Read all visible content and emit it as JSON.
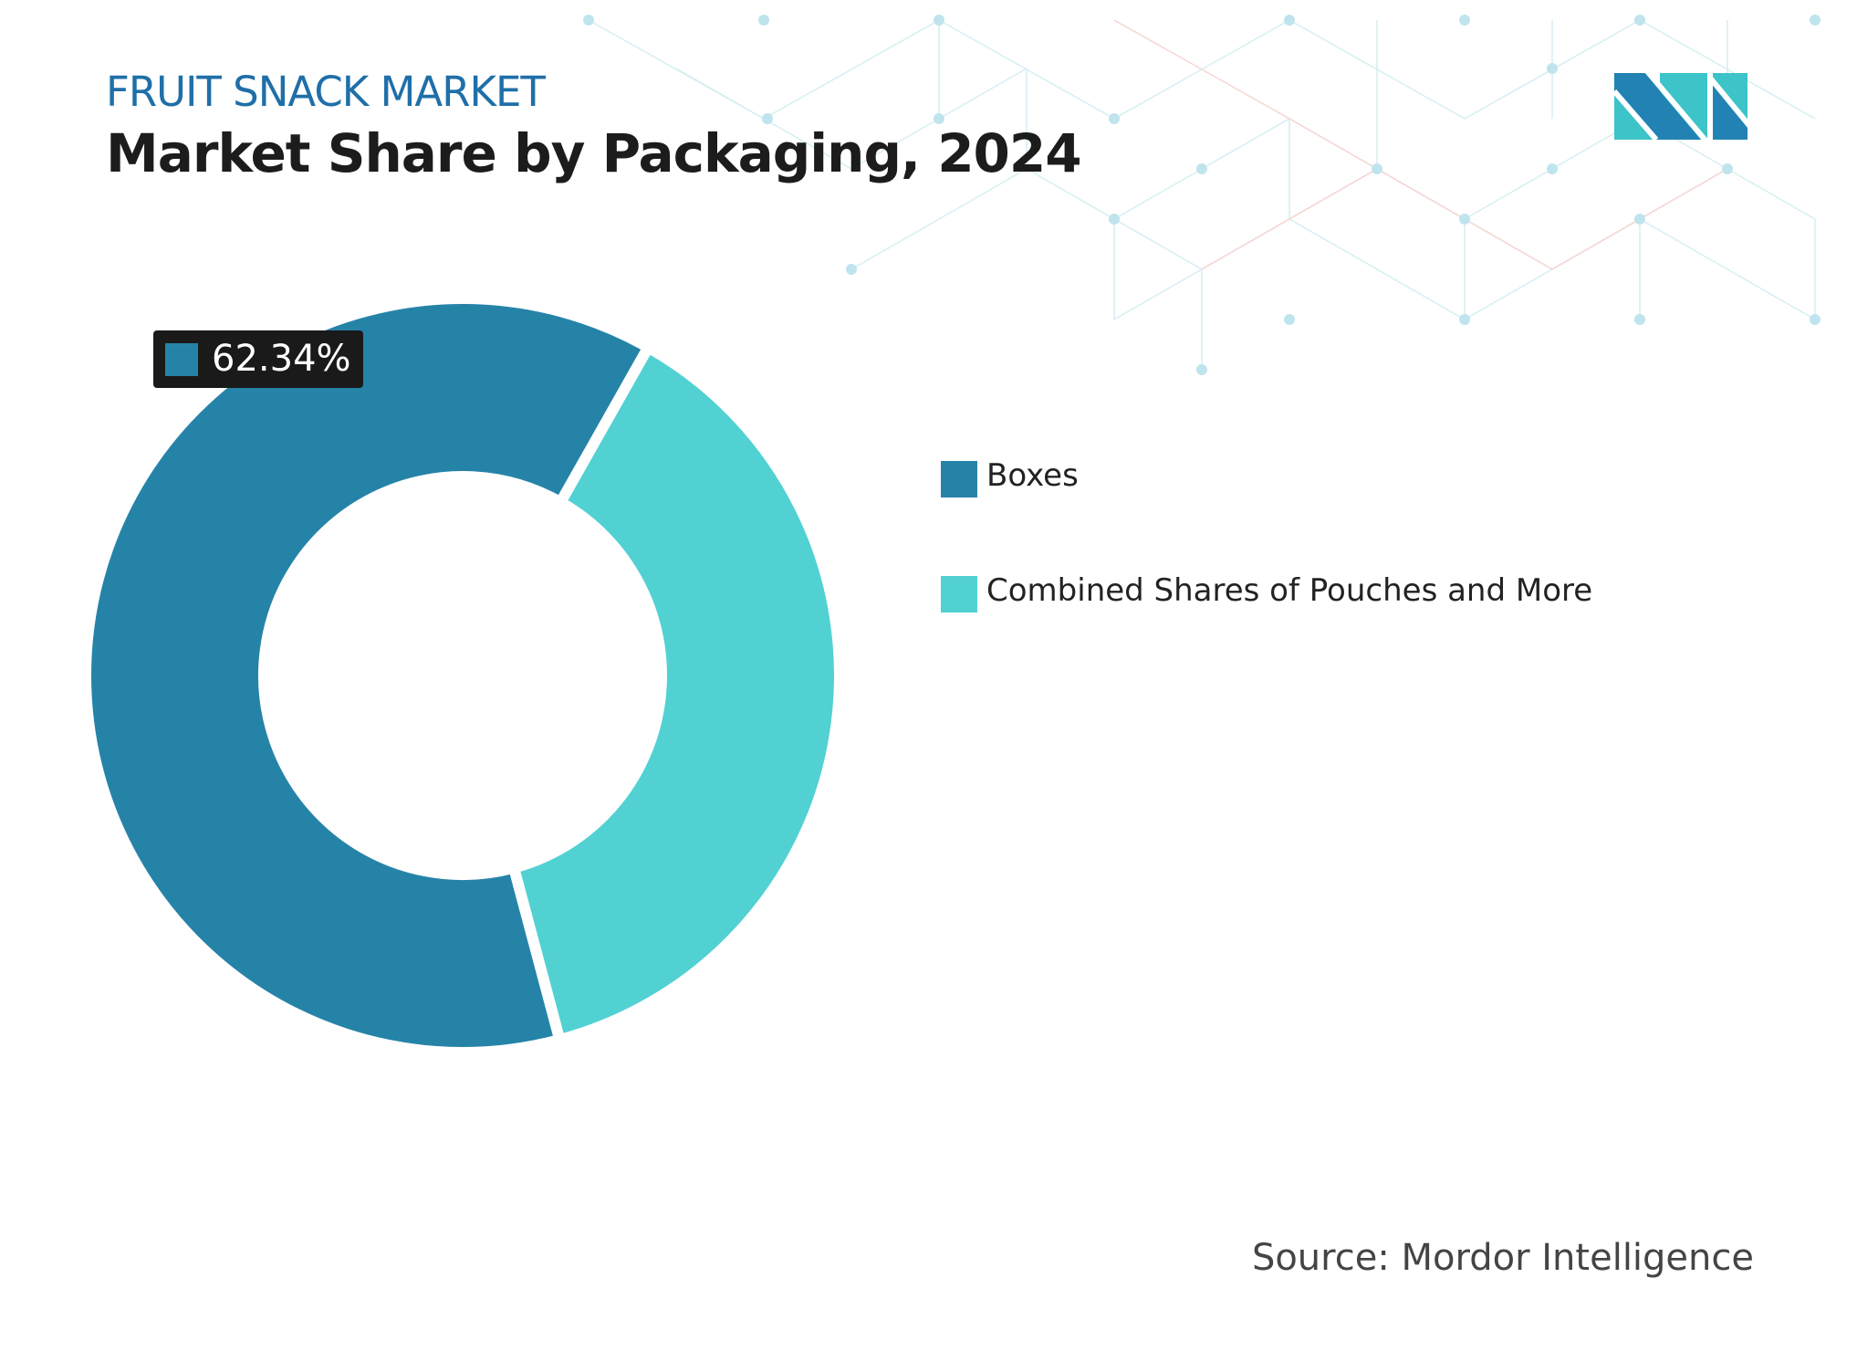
{
  "header": {
    "subtitle": "FRUIT SNACK MARKET",
    "title": "Market Share by Packaging, 2024"
  },
  "source": "Source: Mordor Intelligence",
  "logo": {
    "name": "mordor-intelligence-logo",
    "colors": [
      "#2282b4",
      "#3cc4c8"
    ]
  },
  "chart_data": {
    "type": "pie",
    "variant": "donut",
    "categories": [
      "Boxes",
      "Combined Shares of Pouches and More"
    ],
    "values": [
      62.34,
      37.66
    ],
    "colors": [
      "#2683a8",
      "#52d1d3"
    ],
    "data_labels": [
      "62.34%",
      ""
    ],
    "legend": "right"
  }
}
